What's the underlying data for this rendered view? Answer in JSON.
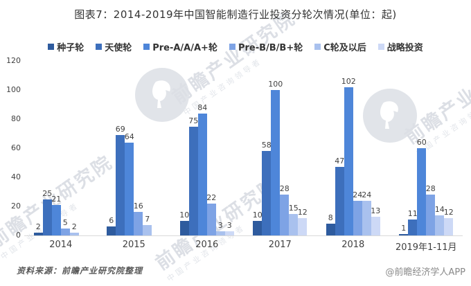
{
  "title": "图表7：2014-2019年中国智能制造行业投资分轮次情况(单位：起)",
  "chart_data": {
    "type": "bar",
    "title": "图表7：2014-2019年中国智能制造行业投资分轮次情况(单位：起)",
    "unit": "起",
    "categories": [
      "2014",
      "2015",
      "2016",
      "2017",
      "2018",
      "2019年1-11月"
    ],
    "series": [
      {
        "name": "种子轮",
        "color": "#2E5B9E",
        "values": [
          2,
          6,
          10,
          10,
          8,
          1
        ]
      },
      {
        "name": "天使轮",
        "color": "#3D6FBC",
        "values": [
          25,
          69,
          75,
          58,
          47,
          11
        ]
      },
      {
        "name": "Pre-A/A/A+轮",
        "color": "#4E86D9",
        "values": [
          21,
          64,
          84,
          100,
          102,
          60
        ]
      },
      {
        "name": "Pre-B/B/B+轮",
        "color": "#7EA3E5",
        "values": [
          5,
          16,
          22,
          28,
          24,
          28
        ]
      },
      {
        "name": "C轮及以后",
        "color": "#A9C1EE",
        "values": [
          2,
          7,
          3,
          15,
          24,
          14
        ]
      },
      {
        "name": "战略投资",
        "color": "#CDD9F6",
        "values": [
          0,
          0,
          3,
          12,
          13,
          12
        ]
      }
    ],
    "ylim": [
      0,
      120
    ],
    "yticks": [
      0,
      20,
      40,
      60,
      80,
      100,
      120
    ],
    "grid": false,
    "legend_position": "top",
    "value_labels": true,
    "zero_values_hidden": true
  },
  "footer": {
    "source": "资料来源：前瞻产业研究院整理",
    "credit": "@前瞻经济学人APP"
  },
  "watermark": {
    "name": "前瞻产业研究院",
    "tagline": "中国产业咨询领导者",
    "logo": "qianzhan-bird-logo"
  }
}
